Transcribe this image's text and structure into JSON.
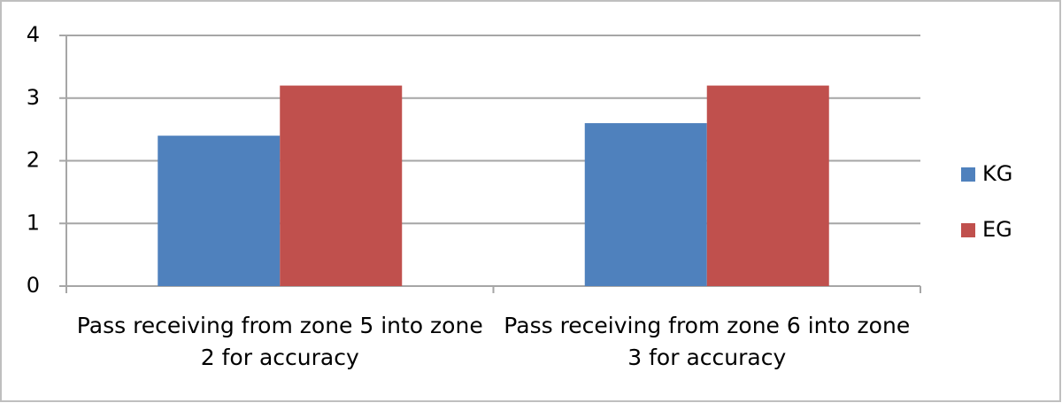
{
  "chart_data": {
    "type": "bar",
    "categories": [
      "Pass receiving from zone 5 into zone 2 for accuracy",
      "Pass receiving from zone 6 into zone 3 for accuracy"
    ],
    "series": [
      {
        "name": "KG",
        "color": "#4f81bd",
        "values": [
          2.4,
          2.6
        ]
      },
      {
        "name": "EG",
        "color": "#c0504d",
        "values": [
          3.2,
          3.2
        ]
      }
    ],
    "ylim": [
      0,
      4
    ],
    "yticks": [
      0,
      1,
      2,
      3,
      4
    ],
    "grid": true,
    "legend": "right"
  }
}
